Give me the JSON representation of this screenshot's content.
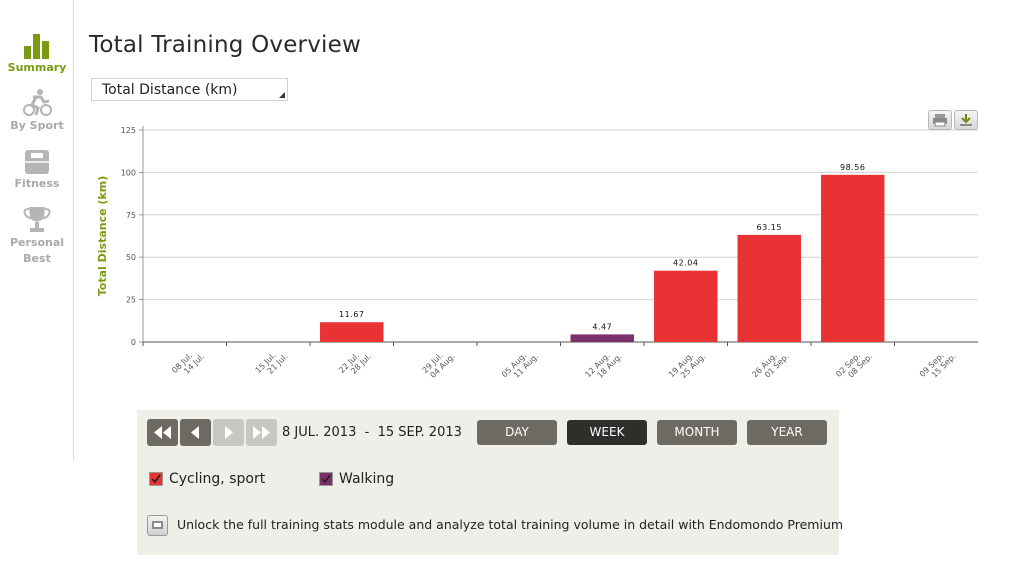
{
  "sidebar": {
    "items": [
      {
        "label": "Summary",
        "active": true
      },
      {
        "label": "By Sport",
        "active": false
      },
      {
        "label": "Fitness",
        "active": false
      },
      {
        "label": "Personal",
        "label2": "Best",
        "active": false
      }
    ]
  },
  "page": {
    "title": "Total Training Overview"
  },
  "metric_select": {
    "value": "Total Distance (km)"
  },
  "toolbar": {
    "print_icon": "print-icon",
    "download_icon": "download-icon"
  },
  "colors": {
    "accent": "#7a9a12",
    "cycling": "#e83234",
    "walking": "#7b2f6b",
    "button": "#6d6b61",
    "button_active": "#2e2e2b"
  },
  "chart_data": {
    "type": "bar",
    "ylabel": "Total Distance (km)",
    "ylim": [
      0,
      125
    ],
    "yticks": [
      "0",
      "25",
      "50",
      "75",
      "100",
      "125"
    ],
    "categories": [
      [
        "08 Jul.",
        "14 Jul."
      ],
      [
        "15 Jul.",
        "21 Jul."
      ],
      [
        "22 Jul.",
        "28 Jul."
      ],
      [
        "29 Jul.",
        "04 Aug."
      ],
      [
        "05 Aug.",
        "11 Aug."
      ],
      [
        "12 Aug.",
        "18 Aug."
      ],
      [
        "19 Aug.",
        "25 Aug."
      ],
      [
        "26 Aug.",
        "01 Sep."
      ],
      [
        "02 Sep.",
        "08 Sep."
      ],
      [
        "09 Sep.",
        "15 Sep."
      ]
    ],
    "series": [
      {
        "name": "Cycling, sport",
        "values": [
          0,
          0,
          11.67,
          0,
          0,
          0,
          42.04,
          63.15,
          98.56,
          0
        ]
      },
      {
        "name": "Walking",
        "values": [
          0,
          0,
          0,
          0,
          0,
          4.47,
          0,
          0,
          0,
          0
        ]
      }
    ],
    "data_labels": [
      "",
      "",
      "11.67",
      "",
      "",
      "4.47",
      "42.04",
      "63.15",
      "98.56",
      ""
    ],
    "grid": true
  },
  "controls": {
    "date_from": "8 JUL. 2013",
    "date_sep": "-",
    "date_to": "15 SEP. 2013",
    "periods": [
      {
        "label": "DAY",
        "active": false
      },
      {
        "label": "WEEK",
        "active": true
      },
      {
        "label": "MONTH",
        "active": false
      },
      {
        "label": "YEAR",
        "active": false
      }
    ]
  },
  "legend": [
    {
      "label": "Cycling, sport",
      "checked": true
    },
    {
      "label": "Walking",
      "checked": true
    }
  ],
  "promo": {
    "text": "Unlock the full training stats module and analyze total training volume in detail with Endomondo Premium"
  }
}
